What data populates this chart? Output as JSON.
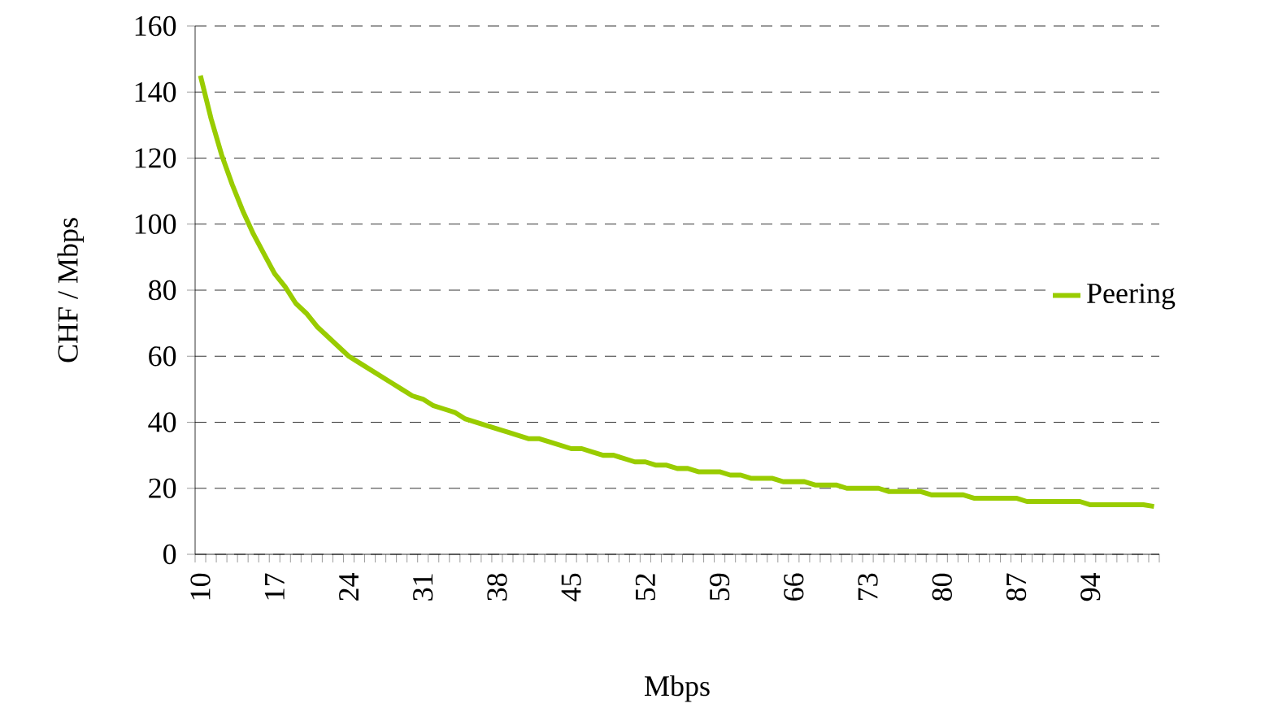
{
  "chart_data": {
    "type": "line",
    "xlabel": "Mbps",
    "ylabel": "CHF / Mbps",
    "categories": [
      "10",
      null,
      null,
      null,
      null,
      null,
      null,
      "17",
      null,
      null,
      null,
      null,
      null,
      null,
      "24",
      null,
      null,
      null,
      null,
      null,
      null,
      "31",
      null,
      null,
      null,
      null,
      null,
      null,
      "38",
      null,
      null,
      null,
      null,
      null,
      null,
      "45",
      null,
      null,
      null,
      null,
      null,
      null,
      "52",
      null,
      null,
      null,
      null,
      null,
      null,
      "59",
      null,
      null,
      null,
      null,
      null,
      null,
      "66",
      null,
      null,
      null,
      null,
      null,
      null,
      "73",
      null,
      null,
      null,
      null,
      null,
      null,
      "80",
      null,
      null,
      null,
      null,
      null,
      null,
      "87",
      null,
      null,
      null,
      null,
      null,
      null,
      "94",
      null,
      null,
      null,
      null,
      null,
      null
    ],
    "series": [
      {
        "name": "Peering",
        "color": "#99cc00",
        "values": [
          145,
          132,
          121,
          112,
          104,
          97,
          91,
          85,
          81,
          76,
          73,
          69,
          66,
          63,
          60,
          58,
          56,
          54,
          52,
          50,
          48,
          47,
          45,
          44,
          43,
          41,
          40,
          39,
          38,
          37,
          36,
          35,
          35,
          34,
          33,
          32,
          32,
          31,
          30,
          30,
          29,
          28,
          28,
          27,
          27,
          26,
          26,
          25,
          25,
          25,
          24,
          24,
          23,
          23,
          23,
          22,
          22,
          22,
          21,
          21,
          21,
          20,
          20,
          20,
          20,
          19,
          19,
          19,
          19,
          18,
          18,
          18,
          18,
          17,
          17,
          17,
          17,
          17,
          16,
          16,
          16,
          16,
          16,
          16,
          15,
          15,
          15,
          15,
          15,
          15,
          14.5
        ]
      }
    ],
    "ylim": [
      0,
      160
    ],
    "yticks": [
      0,
      20,
      40,
      60,
      80,
      100,
      120,
      140,
      160
    ],
    "grid": "y",
    "legend": "right",
    "line_style": "solid"
  }
}
